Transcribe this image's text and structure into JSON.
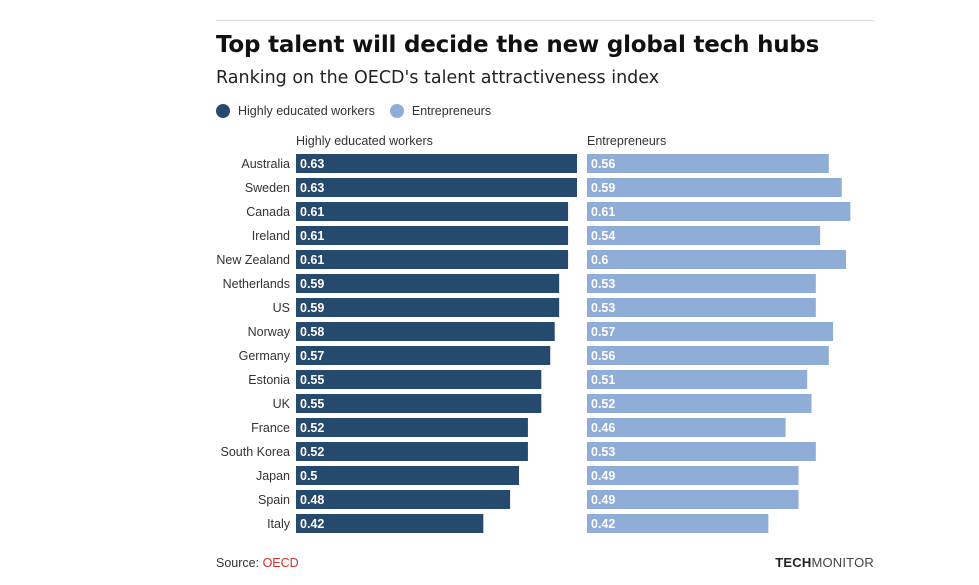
{
  "header": {
    "title": "Top talent will decide the new global tech hubs",
    "subtitle": "Ranking on the OECD's talent attractiveness index"
  },
  "legend": [
    {
      "label": "Highly educated workers",
      "color": "#264a6e"
    },
    {
      "label": "Entrepreneurs",
      "color": "#8fadd6"
    }
  ],
  "footer": {
    "source_label": "Source:",
    "source_name": "OECD",
    "brand_bold": "TECH",
    "brand_regular": "MONITOR"
  },
  "chart_data": {
    "type": "bar",
    "orientation": "horizontal",
    "categories": [
      "Australia",
      "Sweden",
      "Canada",
      "Ireland",
      "New Zealand",
      "Netherlands",
      "US",
      "Norway",
      "Germany",
      "Estonia",
      "UK",
      "France",
      "South Korea",
      "Japan",
      "Spain",
      "Italy"
    ],
    "series": [
      {
        "name": "Highly educated workers",
        "color": "#264a6e",
        "values": [
          0.63,
          0.63,
          0.61,
          0.61,
          0.61,
          0.59,
          0.59,
          0.58,
          0.57,
          0.55,
          0.55,
          0.52,
          0.52,
          0.5,
          0.48,
          0.42
        ]
      },
      {
        "name": "Entrepreneurs",
        "color": "#8fadd6",
        "values": [
          0.56,
          0.59,
          0.61,
          0.54,
          0.6,
          0.53,
          0.53,
          0.57,
          0.56,
          0.51,
          0.52,
          0.46,
          0.53,
          0.49,
          0.49,
          0.42
        ]
      }
    ],
    "xlim": [
      0,
      0.63
    ],
    "grid": false,
    "legend_position": "top-left",
    "data_labels": true
  }
}
